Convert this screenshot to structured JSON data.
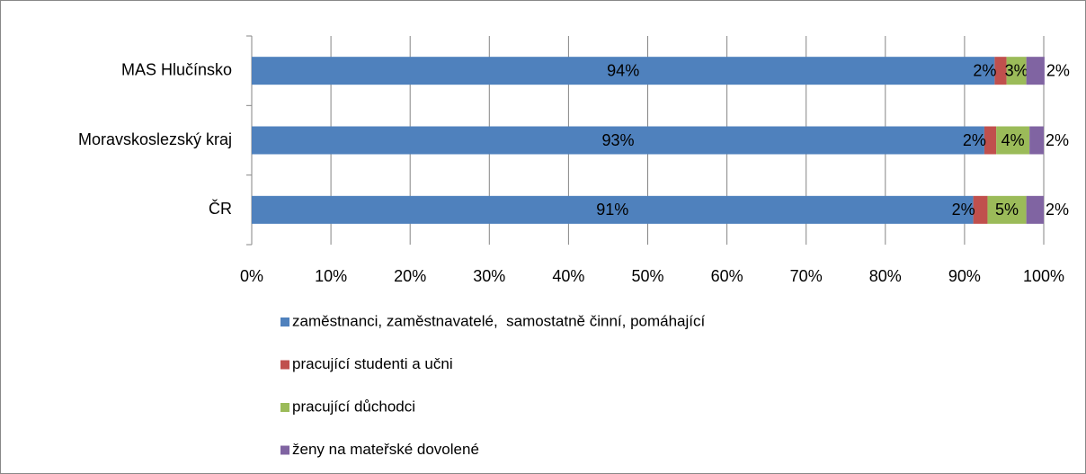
{
  "chart_data": {
    "type": "stacked-barh",
    "categories": [
      "MAS Hlučínsko",
      "Moravskoslezský kraj",
      "ČR"
    ],
    "series": [
      {
        "name": "zaměstnanci, zaměstnavatelé,  samostatně činní, pomáhající",
        "color": "#4f81bd",
        "values": [
          93.8,
          92.5,
          91.1
        ],
        "value_labels": [
          "94%",
          "93%",
          "91%"
        ]
      },
      {
        "name": "pracující studenti a učni",
        "color": "#c0504d",
        "values": [
          1.5,
          1.5,
          1.8
        ],
        "value_labels": [
          "2%",
          "2%",
          "2%"
        ]
      },
      {
        "name": "pracující důchodci",
        "color": "#9bbb59",
        "values": [
          2.5,
          4.2,
          4.9
        ],
        "value_labels": [
          "3%",
          "4%",
          "5%"
        ]
      },
      {
        "name": "ženy na mateřské dovolené",
        "color": "#8064a2",
        "values": [
          2.3,
          1.8,
          2.2
        ],
        "value_labels": [
          "2%",
          "2%",
          "2%"
        ]
      }
    ],
    "xlim": [
      0,
      100
    ],
    "xticks": [
      {
        "value": 0,
        "label": "0%"
      },
      {
        "value": 10,
        "label": "10%"
      },
      {
        "value": 20,
        "label": "20%"
      },
      {
        "value": 30,
        "label": "30%"
      },
      {
        "value": 40,
        "label": "40%"
      },
      {
        "value": 50,
        "label": "50%"
      },
      {
        "value": 60,
        "label": "60%"
      },
      {
        "value": 70,
        "label": "70%"
      },
      {
        "value": 80,
        "label": "80%"
      },
      {
        "value": 90,
        "label": "90%"
      },
      {
        "value": 100,
        "label": "100%"
      }
    ],
    "grid": true,
    "legend": "bottom"
  }
}
